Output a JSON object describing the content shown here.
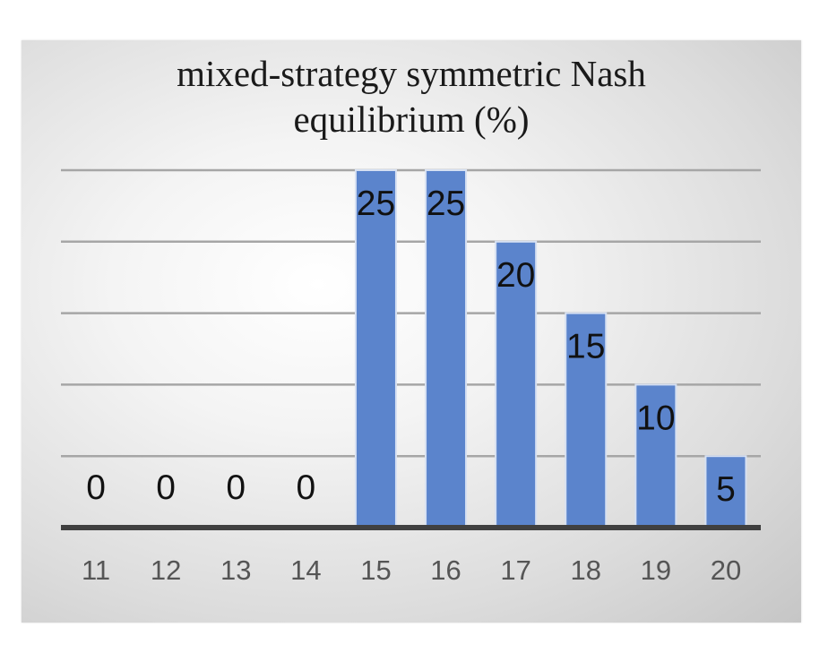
{
  "chart_data": {
    "type": "bar",
    "title_lines": [
      "mixed-strategy symmetric Nash",
      "equilibrium (%)"
    ],
    "categories": [
      "11",
      "12",
      "13",
      "14",
      "15",
      "16",
      "17",
      "18",
      "19",
      "20"
    ],
    "values": [
      0,
      0,
      0,
      0,
      25,
      25,
      20,
      15,
      10,
      5
    ],
    "data_labels": true,
    "xlabel": "",
    "ylabel": "",
    "ylim": [
      0,
      25
    ],
    "y_gridlines": [
      5,
      10,
      15,
      20,
      25
    ],
    "y_tick_labels_shown": false,
    "grid": true,
    "legend": "none",
    "colors": {
      "bar": "#5b84cc",
      "bar_edge": "#d6e0f2",
      "grid": "#a6a6a6",
      "axis": "#404040"
    }
  }
}
